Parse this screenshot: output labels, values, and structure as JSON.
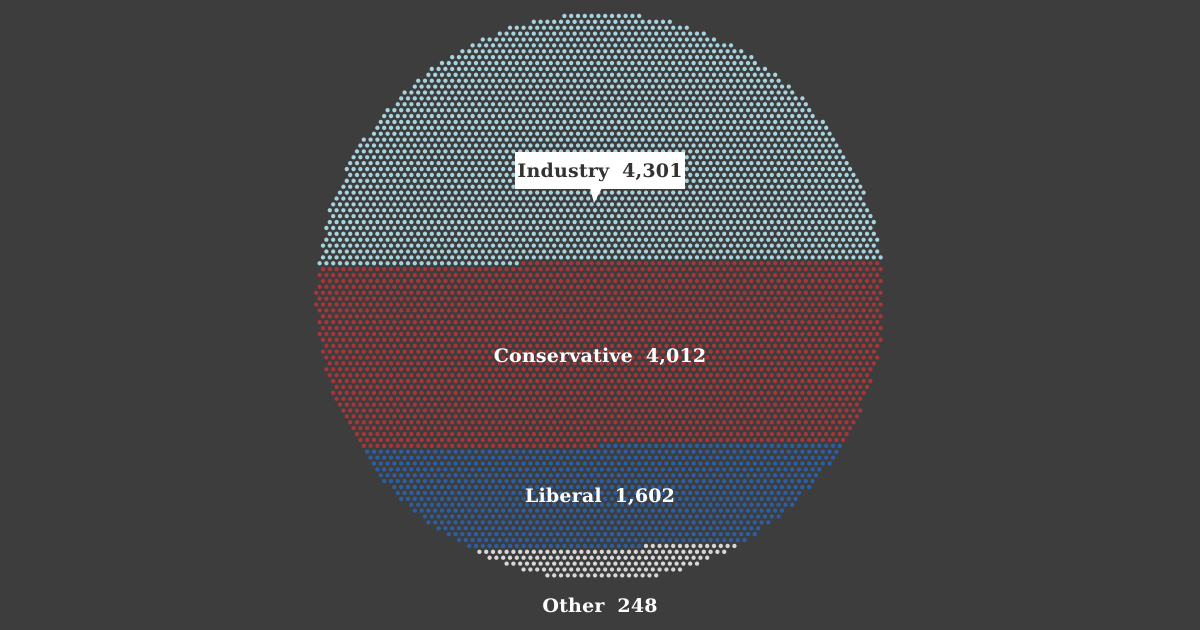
{
  "chart_data": {
    "type": "dot-waffle",
    "title": "",
    "categories": [
      "Industry",
      "Conservative",
      "Liberal",
      "Other"
    ],
    "values": [
      4301,
      4012,
      1602,
      248
    ],
    "value_labels": [
      "4,301",
      "4,012",
      "1,602",
      "248"
    ],
    "colors": [
      "#a7d3df",
      "#a8353a",
      "#2b5fa4",
      "#d8d8d8"
    ],
    "label_style": [
      "callout",
      "inline",
      "inline",
      "below"
    ]
  }
}
